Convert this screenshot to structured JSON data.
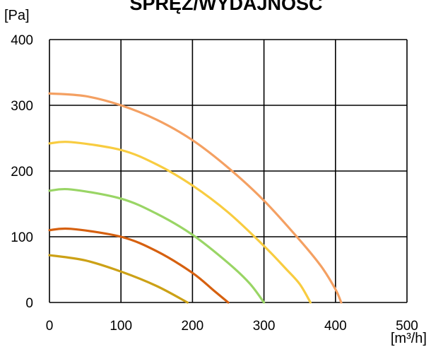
{
  "chart_data": {
    "type": "line",
    "title": "SPRĘŻ/WYDAJNOŚĆ",
    "ylabel": "[Pa]",
    "xlabel": "[m³/h]",
    "xlim": [
      0,
      500
    ],
    "ylim": [
      0,
      400
    ],
    "x_ticks": [
      0,
      100,
      200,
      300,
      400,
      500
    ],
    "y_ticks": [
      0,
      100,
      200,
      300,
      400
    ],
    "grid": true,
    "series": [
      {
        "color": "#F4A062",
        "x": [
          0,
          50,
          100,
          150,
          200,
          250,
          300,
          350,
          380,
          400,
          408
        ],
        "y": [
          318,
          314,
          300,
          278,
          247,
          205,
          155,
          95,
          55,
          20,
          0
        ]
      },
      {
        "color": "#F8CC40",
        "x": [
          0,
          30,
          100,
          150,
          200,
          250,
          300,
          330,
          350,
          365
        ],
        "y": [
          242,
          244,
          232,
          210,
          178,
          137,
          86,
          52,
          28,
          0
        ]
      },
      {
        "color": "#99D565",
        "x": [
          0,
          30,
          100,
          150,
          200,
          250,
          280,
          300
        ],
        "y": [
          170,
          172,
          158,
          135,
          103,
          60,
          29,
          0
        ]
      },
      {
        "color": "#D6600F",
        "x": [
          0,
          30,
          100,
          150,
          200,
          230,
          250
        ],
        "y": [
          110,
          112,
          100,
          78,
          45,
          18,
          0
        ]
      },
      {
        "color": "#CCA116",
        "x": [
          0,
          50,
          100,
          150,
          193
        ],
        "y": [
          72,
          64,
          47,
          25,
          0
        ]
      }
    ]
  }
}
